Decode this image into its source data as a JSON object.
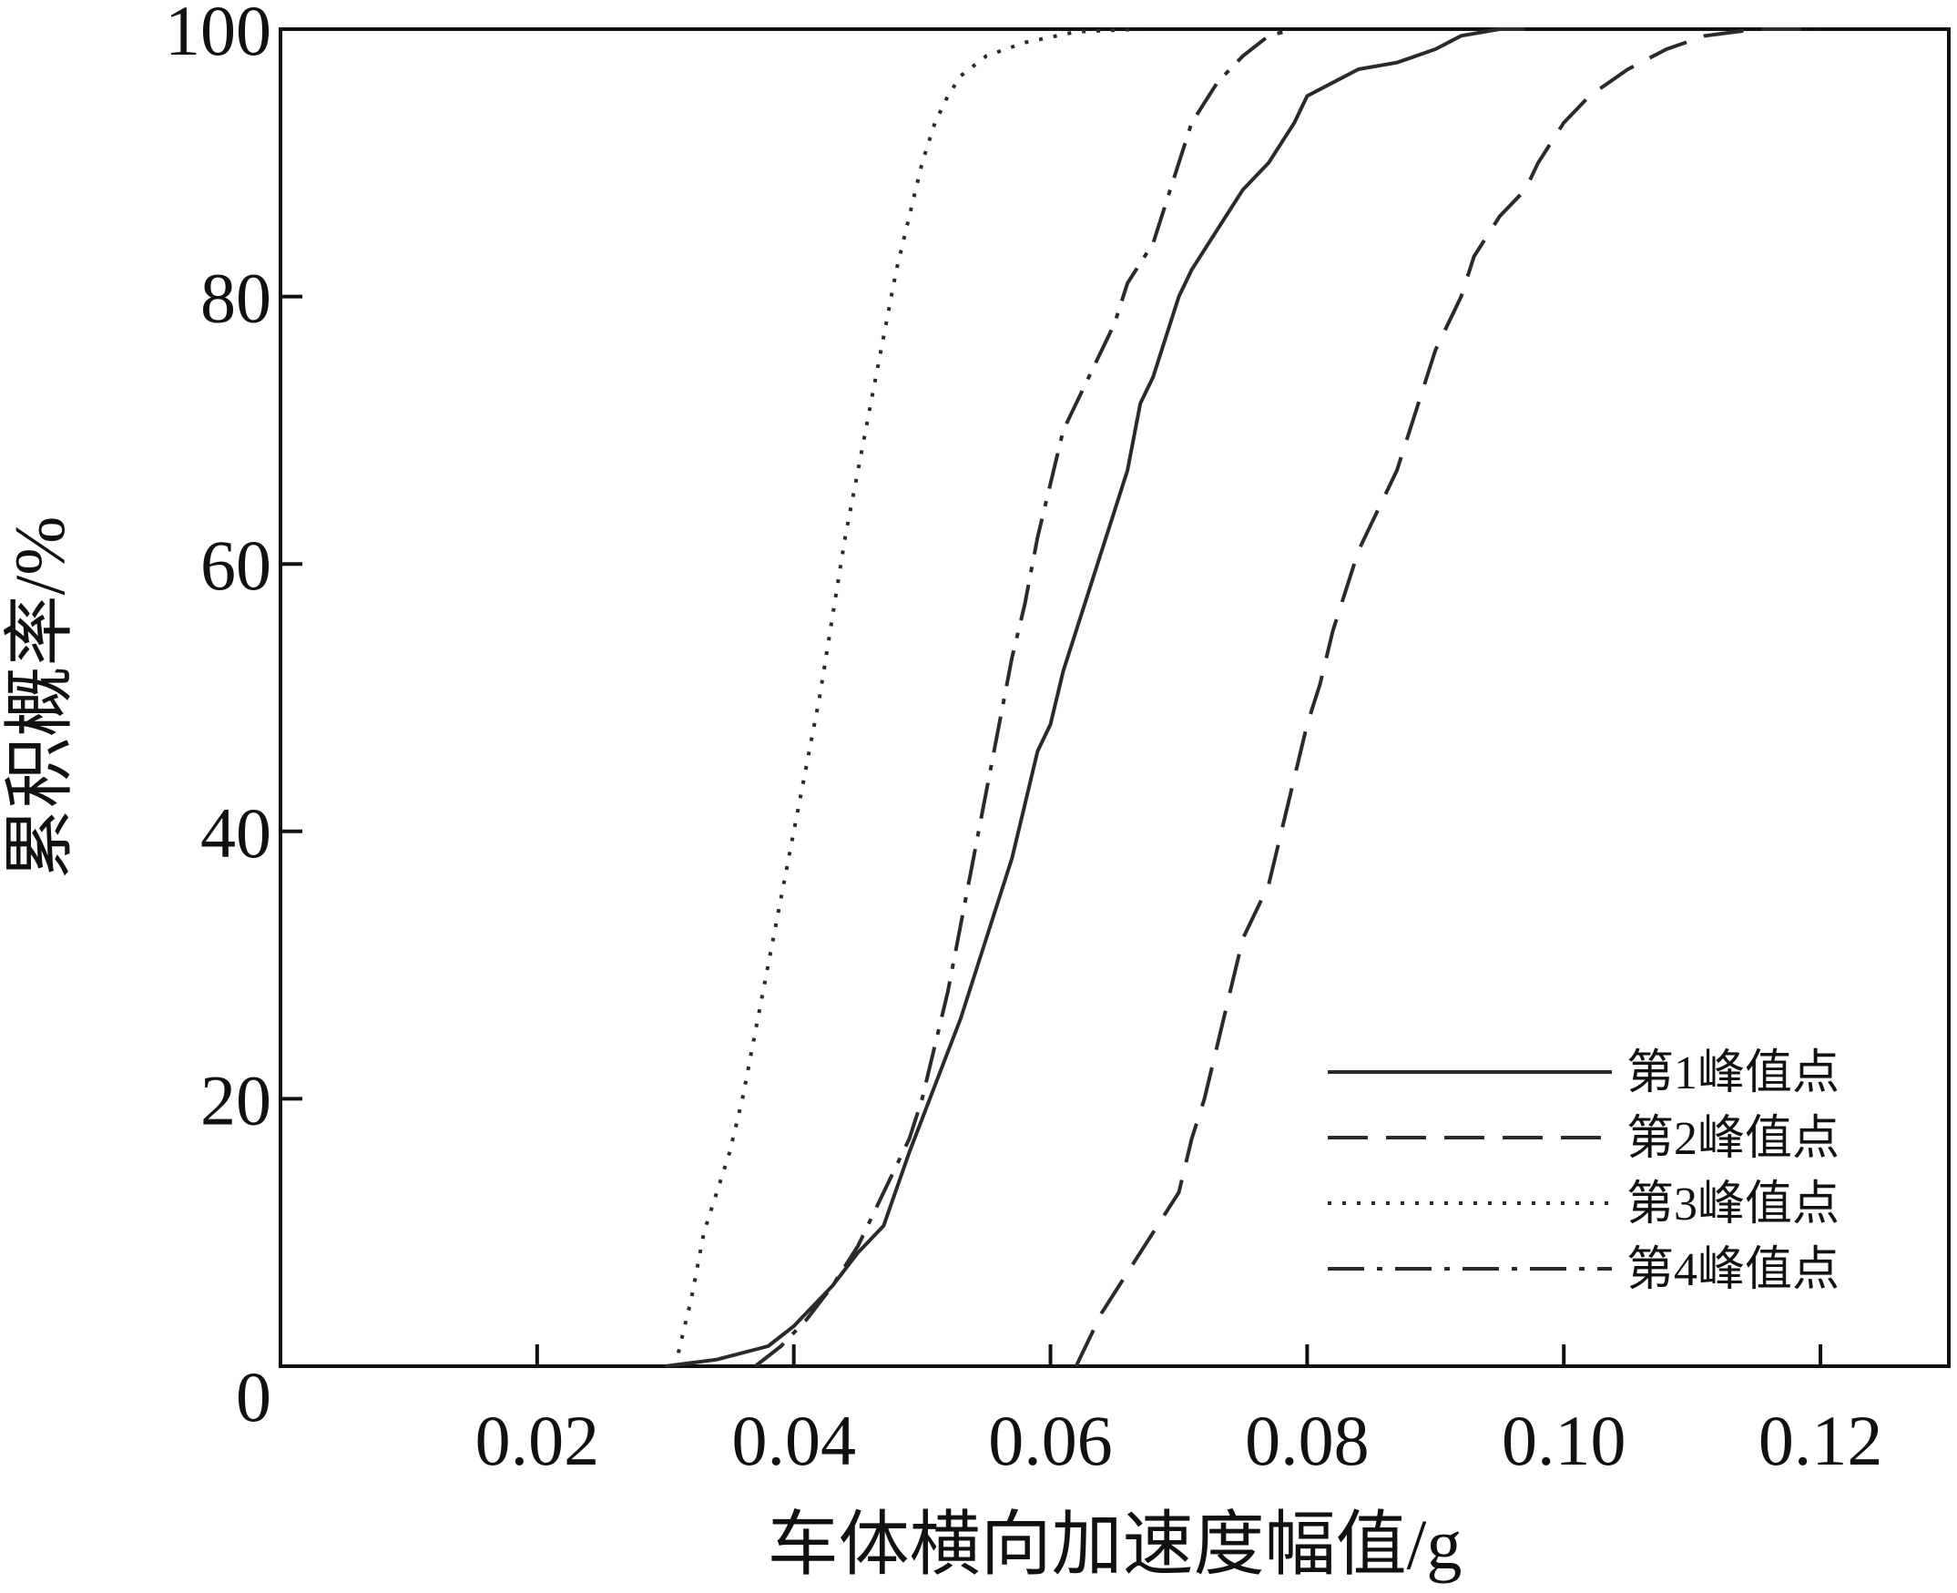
{
  "chart_data": {
    "type": "line",
    "title": "",
    "xlabel": "车体横向加速度幅值/g",
    "ylabel": "累积概率/%",
    "xlim": [
      0,
      0.13
    ],
    "ylim": [
      0,
      100
    ],
    "x_ticks": [
      0.02,
      0.04,
      0.06,
      0.08,
      0.1,
      0.12
    ],
    "x_tick_labels": [
      "0.02",
      "0.04",
      "0.06",
      "0.08",
      "0.10",
      "0.12"
    ],
    "y_ticks": [
      0,
      20,
      40,
      60,
      80,
      100
    ],
    "y_tick_labels": [
      "0",
      "20",
      "40",
      "60",
      "80",
      "100"
    ],
    "grid": false,
    "legend_position": "bottom-right",
    "series": [
      {
        "name": "第1峰值点",
        "style": "solid",
        "points": [
          [
            0.03,
            0
          ],
          [
            0.034,
            0.5
          ],
          [
            0.038,
            1.5
          ],
          [
            0.04,
            3
          ],
          [
            0.043,
            6
          ],
          [
            0.045,
            8.5
          ],
          [
            0.047,
            10.5
          ],
          [
            0.049,
            16
          ],
          [
            0.051,
            21
          ],
          [
            0.053,
            26
          ],
          [
            0.055,
            32
          ],
          [
            0.057,
            38
          ],
          [
            0.058,
            42
          ],
          [
            0.059,
            46
          ],
          [
            0.06,
            48
          ],
          [
            0.061,
            52
          ],
          [
            0.062,
            55
          ],
          [
            0.063,
            58
          ],
          [
            0.064,
            61
          ],
          [
            0.065,
            64
          ],
          [
            0.066,
            67
          ],
          [
            0.067,
            72
          ],
          [
            0.068,
            74
          ],
          [
            0.069,
            77
          ],
          [
            0.07,
            80
          ],
          [
            0.071,
            82
          ],
          [
            0.073,
            85
          ],
          [
            0.075,
            88
          ],
          [
            0.077,
            90
          ],
          [
            0.079,
            93
          ],
          [
            0.08,
            95
          ],
          [
            0.082,
            96
          ],
          [
            0.084,
            97
          ],
          [
            0.087,
            97.5
          ],
          [
            0.09,
            98.5
          ],
          [
            0.092,
            99.5
          ],
          [
            0.095,
            100
          ],
          [
            0.097,
            100
          ]
        ]
      },
      {
        "name": "第2峰值点",
        "style": "dashed",
        "points": [
          [
            0.062,
            0
          ],
          [
            0.063,
            2
          ],
          [
            0.064,
            4
          ],
          [
            0.066,
            7
          ],
          [
            0.068,
            10
          ],
          [
            0.07,
            13
          ],
          [
            0.071,
            17
          ],
          [
            0.072,
            20
          ],
          [
            0.073,
            24
          ],
          [
            0.074,
            28
          ],
          [
            0.075,
            32
          ],
          [
            0.077,
            36
          ],
          [
            0.078,
            40
          ],
          [
            0.079,
            44
          ],
          [
            0.08,
            48
          ],
          [
            0.081,
            51
          ],
          [
            0.082,
            55
          ],
          [
            0.083,
            58
          ],
          [
            0.084,
            61
          ],
          [
            0.085,
            63
          ],
          [
            0.086,
            65
          ],
          [
            0.087,
            67
          ],
          [
            0.088,
            70
          ],
          [
            0.089,
            73
          ],
          [
            0.09,
            76
          ],
          [
            0.092,
            80
          ],
          [
            0.093,
            83
          ],
          [
            0.095,
            86
          ],
          [
            0.097,
            88
          ],
          [
            0.098,
            90
          ],
          [
            0.1,
            93
          ],
          [
            0.102,
            95
          ],
          [
            0.105,
            97
          ],
          [
            0.108,
            98.5
          ],
          [
            0.111,
            99.5
          ],
          [
            0.115,
            100
          ],
          [
            0.12,
            100
          ]
        ]
      },
      {
        "name": "第3峰值点",
        "style": "dotted",
        "points": [
          [
            0.031,
            1
          ],
          [
            0.032,
            5
          ],
          [
            0.033,
            10
          ],
          [
            0.035,
            16
          ],
          [
            0.036,
            20
          ],
          [
            0.037,
            25
          ],
          [
            0.038,
            30
          ],
          [
            0.039,
            35
          ],
          [
            0.04,
            40
          ],
          [
            0.041,
            45
          ],
          [
            0.042,
            50
          ],
          [
            0.043,
            56
          ],
          [
            0.044,
            62
          ],
          [
            0.045,
            67
          ],
          [
            0.046,
            72
          ],
          [
            0.047,
            77
          ],
          [
            0.048,
            82
          ],
          [
            0.049,
            86
          ],
          [
            0.05,
            90
          ],
          [
            0.051,
            93
          ],
          [
            0.052,
            95
          ],
          [
            0.053,
            96.5
          ],
          [
            0.055,
            98
          ],
          [
            0.058,
            99
          ],
          [
            0.062,
            99.8
          ],
          [
            0.067,
            100
          ]
        ]
      },
      {
        "name": "第4峰值点",
        "style": "dashdot",
        "points": [
          [
            0.037,
            0
          ],
          [
            0.039,
            1.5
          ],
          [
            0.041,
            3.5
          ],
          [
            0.043,
            6
          ],
          [
            0.045,
            9
          ],
          [
            0.047,
            13
          ],
          [
            0.049,
            17
          ],
          [
            0.05,
            20
          ],
          [
            0.051,
            24
          ],
          [
            0.052,
            28
          ],
          [
            0.053,
            33
          ],
          [
            0.054,
            38
          ],
          [
            0.055,
            43
          ],
          [
            0.056,
            48
          ],
          [
            0.057,
            53
          ],
          [
            0.058,
            57
          ],
          [
            0.059,
            62
          ],
          [
            0.06,
            66
          ],
          [
            0.061,
            70
          ],
          [
            0.063,
            74
          ],
          [
            0.065,
            78
          ],
          [
            0.066,
            81
          ],
          [
            0.068,
            84
          ],
          [
            0.069,
            87
          ],
          [
            0.07,
            90
          ],
          [
            0.071,
            93
          ],
          [
            0.073,
            96
          ],
          [
            0.075,
            98
          ],
          [
            0.077,
            99.5
          ],
          [
            0.079,
            100
          ]
        ]
      }
    ]
  }
}
